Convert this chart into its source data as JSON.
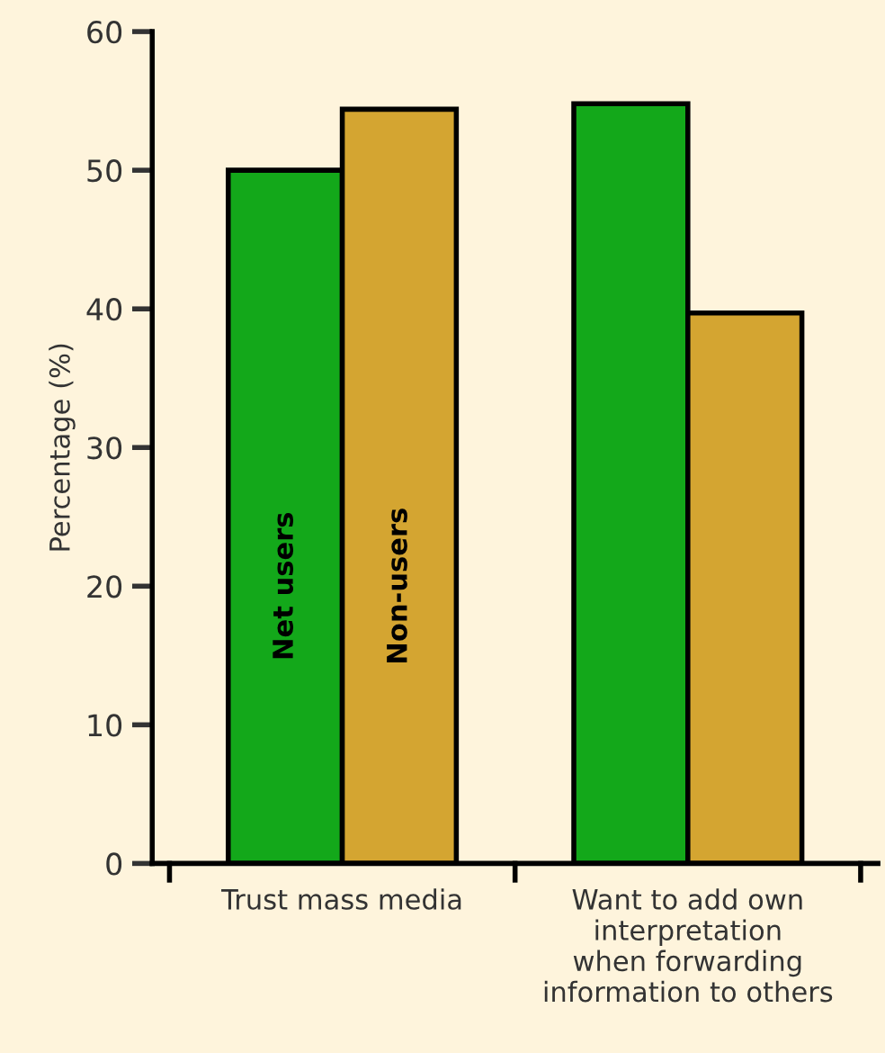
{
  "chart_data": {
    "type": "bar",
    "ylabel": "Percentage (%)",
    "categories": [
      "Trust mass media",
      "Want to add own\ninterpretation\nwhen forwarding\ninformation to others"
    ],
    "series": [
      {
        "name": "Net users",
        "color": "#13a81a",
        "values": [
          50,
          54.8
        ]
      },
      {
        "name": "Non-users",
        "color": "#d4a531",
        "values": [
          54.4,
          39.7
        ]
      }
    ],
    "ylim": [
      0,
      60
    ],
    "yticks": [
      0,
      10,
      20,
      30,
      40,
      50,
      60
    ],
    "grid": false
  }
}
